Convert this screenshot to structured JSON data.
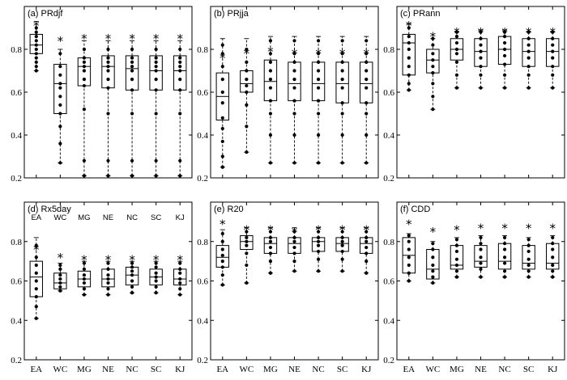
{
  "chart_data": [
    {
      "type": "box",
      "title": "(a) PRdjf",
      "categories": [
        "EA",
        "WC",
        "MG",
        "NE",
        "NC",
        "SC",
        "KJ"
      ],
      "ylim": [
        0.2,
        1.0
      ],
      "yticks": [
        0.2,
        0.4,
        0.6,
        0.8
      ],
      "show_xtick_labels": false,
      "show_ytick_labels": true,
      "boxes": [
        {
          "min": 0.7,
          "q1": 0.78,
          "median": 0.82,
          "q3": 0.87,
          "max": 0.93
        },
        {
          "min": 0.27,
          "q1": 0.5,
          "median": 0.64,
          "q3": 0.73,
          "max": 0.8
        },
        {
          "min": 0.21,
          "q1": 0.63,
          "median": 0.72,
          "q3": 0.76,
          "max": 0.84
        },
        {
          "min": 0.21,
          "q1": 0.62,
          "median": 0.72,
          "q3": 0.77,
          "max": 0.84
        },
        {
          "min": 0.21,
          "q1": 0.61,
          "median": 0.71,
          "q3": 0.77,
          "max": 0.84
        },
        {
          "min": 0.21,
          "q1": 0.61,
          "median": 0.7,
          "q3": 0.77,
          "max": 0.84
        },
        {
          "min": 0.21,
          "q1": 0.61,
          "median": 0.7,
          "q3": 0.77,
          "max": 0.84
        }
      ],
      "mean_markers": [
        0.92,
        0.85,
        0.86,
        0.86,
        0.86,
        0.86,
        0.86
      ],
      "points": [
        [
          0.7,
          0.72,
          0.74,
          0.76,
          0.78,
          0.8,
          0.82,
          0.84,
          0.86,
          0.88,
          0.9
        ],
        [
          0.27,
          0.36,
          0.44,
          0.5,
          0.54,
          0.58,
          0.62,
          0.64,
          0.68,
          0.72,
          0.78
        ],
        [
          0.21,
          0.28,
          0.52,
          0.63,
          0.66,
          0.7,
          0.72,
          0.74,
          0.76,
          0.8
        ],
        [
          0.21,
          0.28,
          0.5,
          0.62,
          0.66,
          0.7,
          0.72,
          0.74,
          0.76,
          0.8
        ],
        [
          0.21,
          0.28,
          0.5,
          0.61,
          0.66,
          0.7,
          0.72,
          0.74,
          0.76,
          0.8
        ],
        [
          0.21,
          0.28,
          0.5,
          0.61,
          0.66,
          0.7,
          0.72,
          0.74,
          0.76,
          0.8
        ],
        [
          0.21,
          0.28,
          0.5,
          0.61,
          0.66,
          0.7,
          0.72,
          0.74,
          0.76,
          0.8
        ]
      ]
    },
    {
      "type": "box",
      "title": "(b) PRjja",
      "categories": [
        "EA",
        "WC",
        "MG",
        "NE",
        "NC",
        "SC",
        "KJ"
      ],
      "ylim": [
        0.2,
        1.0
      ],
      "yticks": [
        0.2,
        0.4,
        0.6,
        0.8
      ],
      "show_xtick_labels": false,
      "show_ytick_labels": true,
      "boxes": [
        {
          "min": 0.25,
          "q1": 0.47,
          "median": 0.58,
          "q3": 0.69,
          "max": 0.85
        },
        {
          "min": 0.32,
          "q1": 0.6,
          "median": 0.64,
          "q3": 0.7,
          "max": 0.85
        },
        {
          "min": 0.27,
          "q1": 0.56,
          "median": 0.65,
          "q3": 0.75,
          "max": 0.86
        },
        {
          "min": 0.27,
          "q1": 0.56,
          "median": 0.64,
          "q3": 0.74,
          "max": 0.86
        },
        {
          "min": 0.27,
          "q1": 0.56,
          "median": 0.64,
          "q3": 0.74,
          "max": 0.86
        },
        {
          "min": 0.27,
          "q1": 0.55,
          "median": 0.64,
          "q3": 0.74,
          "max": 0.86
        },
        {
          "min": 0.27,
          "q1": 0.55,
          "median": 0.64,
          "q3": 0.74,
          "max": 0.86
        }
      ],
      "mean_markers": [
        0.77,
        0.79,
        0.8,
        0.79,
        0.79,
        0.79,
        0.79
      ],
      "points": [
        [
          0.25,
          0.3,
          0.37,
          0.43,
          0.48,
          0.55,
          0.6,
          0.66,
          0.72,
          0.78,
          0.82
        ],
        [
          0.32,
          0.44,
          0.54,
          0.6,
          0.63,
          0.66,
          0.7,
          0.74,
          0.8
        ],
        [
          0.27,
          0.4,
          0.5,
          0.56,
          0.62,
          0.66,
          0.7,
          0.74,
          0.78,
          0.84
        ],
        [
          0.27,
          0.4,
          0.5,
          0.56,
          0.62,
          0.66,
          0.7,
          0.74,
          0.78,
          0.84
        ],
        [
          0.27,
          0.4,
          0.5,
          0.56,
          0.62,
          0.66,
          0.7,
          0.74,
          0.78,
          0.84
        ],
        [
          0.27,
          0.4,
          0.5,
          0.55,
          0.62,
          0.66,
          0.7,
          0.74,
          0.78,
          0.84
        ],
        [
          0.27,
          0.4,
          0.5,
          0.55,
          0.62,
          0.66,
          0.7,
          0.74,
          0.78,
          0.84
        ]
      ]
    },
    {
      "type": "box",
      "title": "(c) PRann",
      "categories": [
        "EA",
        "WC",
        "MG",
        "NE",
        "NC",
        "SC",
        "KJ"
      ],
      "ylim": [
        0.2,
        1.0
      ],
      "yticks": [
        0.2,
        0.4,
        0.6,
        0.8
      ],
      "show_xtick_labels": false,
      "show_ytick_labels": true,
      "boxes": [
        {
          "min": 0.61,
          "q1": 0.68,
          "median": 0.83,
          "q3": 0.87,
          "max": 0.92
        },
        {
          "min": 0.52,
          "q1": 0.69,
          "median": 0.75,
          "q3": 0.8,
          "max": 0.85
        },
        {
          "min": 0.62,
          "q1": 0.75,
          "median": 0.8,
          "q3": 0.85,
          "max": 0.88
        },
        {
          "min": 0.62,
          "q1": 0.72,
          "median": 0.79,
          "q3": 0.85,
          "max": 0.89
        },
        {
          "min": 0.62,
          "q1": 0.73,
          "median": 0.8,
          "q3": 0.86,
          "max": 0.89
        },
        {
          "min": 0.62,
          "q1": 0.72,
          "median": 0.79,
          "q3": 0.85,
          "max": 0.88
        },
        {
          "min": 0.62,
          "q1": 0.72,
          "median": 0.79,
          "q3": 0.85,
          "max": 0.88
        }
      ],
      "mean_markers": [
        0.92,
        0.87,
        0.89,
        0.89,
        0.89,
        0.89,
        0.89
      ],
      "points": [
        [
          0.61,
          0.64,
          0.68,
          0.72,
          0.76,
          0.8,
          0.83,
          0.86,
          0.9
        ],
        [
          0.52,
          0.58,
          0.64,
          0.69,
          0.72,
          0.75,
          0.78,
          0.82,
          0.85
        ],
        [
          0.62,
          0.68,
          0.74,
          0.78,
          0.8,
          0.83,
          0.86,
          0.88
        ],
        [
          0.62,
          0.68,
          0.72,
          0.76,
          0.79,
          0.82,
          0.85,
          0.88
        ],
        [
          0.62,
          0.68,
          0.73,
          0.77,
          0.8,
          0.83,
          0.86,
          0.88
        ],
        [
          0.62,
          0.68,
          0.72,
          0.76,
          0.79,
          0.82,
          0.85,
          0.88
        ],
        [
          0.62,
          0.68,
          0.72,
          0.76,
          0.79,
          0.82,
          0.85,
          0.88
        ]
      ]
    },
    {
      "type": "box",
      "title": "(d) Rx5day",
      "categories": [
        "EA",
        "WC",
        "MG",
        "NE",
        "NC",
        "SC",
        "KJ"
      ],
      "ylim": [
        0.2,
        1.0
      ],
      "yticks": [
        0.2,
        0.4,
        0.6,
        0.8
      ],
      "show_xtick_labels": true,
      "show_ytick_labels": true,
      "header_labels": [
        "EA",
        "WC",
        "MG",
        "NE",
        "NC",
        "SC",
        "KJ"
      ],
      "boxes": [
        {
          "min": 0.41,
          "q1": 0.52,
          "median": 0.62,
          "q3": 0.7,
          "max": 0.82
        },
        {
          "min": 0.55,
          "q1": 0.56,
          "median": 0.59,
          "q3": 0.64,
          "max": 0.69
        },
        {
          "min": 0.53,
          "q1": 0.57,
          "median": 0.61,
          "q3": 0.65,
          "max": 0.7
        },
        {
          "min": 0.53,
          "q1": 0.57,
          "median": 0.61,
          "q3": 0.66,
          "max": 0.7
        },
        {
          "min": 0.54,
          "q1": 0.58,
          "median": 0.63,
          "q3": 0.67,
          "max": 0.7
        },
        {
          "min": 0.54,
          "q1": 0.58,
          "median": 0.62,
          "q3": 0.66,
          "max": 0.7
        },
        {
          "min": 0.53,
          "q1": 0.58,
          "median": 0.61,
          "q3": 0.66,
          "max": 0.7
        }
      ],
      "mean_markers": [
        0.77,
        0.73,
        0.72,
        0.72,
        0.72,
        0.72,
        0.72
      ],
      "points": [
        [
          0.41,
          0.47,
          0.52,
          0.56,
          0.6,
          0.64,
          0.68,
          0.72,
          0.78
        ],
        [
          0.55,
          0.57,
          0.59,
          0.61,
          0.63,
          0.66,
          0.68
        ],
        [
          0.53,
          0.56,
          0.59,
          0.61,
          0.63,
          0.66,
          0.69
        ],
        [
          0.53,
          0.56,
          0.59,
          0.61,
          0.63,
          0.66,
          0.69
        ],
        [
          0.54,
          0.57,
          0.6,
          0.63,
          0.65,
          0.67,
          0.69
        ],
        [
          0.54,
          0.57,
          0.6,
          0.62,
          0.64,
          0.67,
          0.69
        ],
        [
          0.53,
          0.56,
          0.59,
          0.61,
          0.64,
          0.66,
          0.69
        ]
      ]
    },
    {
      "type": "box",
      "title": "(e) R20",
      "categories": [
        "EA",
        "WC",
        "MG",
        "NE",
        "NC",
        "SC",
        "KJ"
      ],
      "ylim": [
        0.2,
        1.0
      ],
      "yticks": [
        0.2,
        0.4,
        0.6,
        0.8
      ],
      "show_xtick_labels": true,
      "show_ytick_labels": true,
      "boxes": [
        {
          "min": 0.58,
          "q1": 0.67,
          "median": 0.72,
          "q3": 0.78,
          "max": 0.86
        },
        {
          "min": 0.59,
          "q1": 0.76,
          "median": 0.8,
          "q3": 0.83,
          "max": 0.87
        },
        {
          "min": 0.64,
          "q1": 0.74,
          "median": 0.79,
          "q3": 0.82,
          "max": 0.87
        },
        {
          "min": 0.65,
          "q1": 0.74,
          "median": 0.79,
          "q3": 0.82,
          "max": 0.87
        },
        {
          "min": 0.65,
          "q1": 0.75,
          "median": 0.8,
          "q3": 0.82,
          "max": 0.87
        },
        {
          "min": 0.65,
          "q1": 0.75,
          "median": 0.79,
          "q3": 0.82,
          "max": 0.87
        },
        {
          "min": 0.64,
          "q1": 0.74,
          "median": 0.79,
          "q3": 0.82,
          "max": 0.87
        }
      ],
      "mean_markers": [
        0.9,
        0.87,
        0.87,
        0.86,
        0.87,
        0.87,
        0.87
      ],
      "points": [
        [
          0.58,
          0.63,
          0.67,
          0.7,
          0.73,
          0.76,
          0.8,
          0.84
        ],
        [
          0.59,
          0.68,
          0.74,
          0.78,
          0.8,
          0.82,
          0.85
        ],
        [
          0.64,
          0.7,
          0.74,
          0.77,
          0.8,
          0.82,
          0.85
        ],
        [
          0.65,
          0.7,
          0.74,
          0.77,
          0.8,
          0.82,
          0.85
        ],
        [
          0.65,
          0.71,
          0.75,
          0.78,
          0.8,
          0.82,
          0.85
        ],
        [
          0.65,
          0.71,
          0.75,
          0.78,
          0.8,
          0.82,
          0.85
        ],
        [
          0.64,
          0.7,
          0.74,
          0.77,
          0.8,
          0.82,
          0.85
        ]
      ]
    },
    {
      "type": "box",
      "title": "(f) CDD",
      "categories": [
        "EA",
        "WC",
        "MG",
        "NE",
        "NC",
        "SC",
        "KJ"
      ],
      "ylim": [
        0.2,
        1.0
      ],
      "yticks": [
        0.2,
        0.4,
        0.6,
        0.8
      ],
      "show_xtick_labels": true,
      "show_ytick_labels": true,
      "boxes": [
        {
          "min": 0.6,
          "q1": 0.64,
          "median": 0.73,
          "q3": 0.82,
          "max": 0.84
        },
        {
          "min": 0.59,
          "q1": 0.61,
          "median": 0.66,
          "q3": 0.76,
          "max": 0.8
        },
        {
          "min": 0.62,
          "q1": 0.66,
          "median": 0.68,
          "q3": 0.78,
          "max": 0.82
        },
        {
          "min": 0.62,
          "q1": 0.67,
          "median": 0.7,
          "q3": 0.78,
          "max": 0.83
        },
        {
          "min": 0.62,
          "q1": 0.66,
          "median": 0.7,
          "q3": 0.79,
          "max": 0.83
        },
        {
          "min": 0.62,
          "q1": 0.66,
          "median": 0.69,
          "q3": 0.78,
          "max": 0.82
        },
        {
          "min": 0.62,
          "q1": 0.66,
          "median": 0.69,
          "q3": 0.79,
          "max": 0.83
        }
      ],
      "mean_markers": [
        0.9,
        0.86,
        0.87,
        0.88,
        0.88,
        0.88,
        0.88
      ],
      "points": [
        [
          0.6,
          0.64,
          0.68,
          0.72,
          0.76,
          0.8,
          0.83
        ],
        [
          0.59,
          0.62,
          0.65,
          0.68,
          0.72,
          0.76,
          0.79
        ],
        [
          0.62,
          0.65,
          0.68,
          0.71,
          0.75,
          0.78,
          0.81
        ],
        [
          0.62,
          0.66,
          0.69,
          0.72,
          0.76,
          0.79,
          0.82
        ],
        [
          0.62,
          0.65,
          0.69,
          0.72,
          0.76,
          0.79,
          0.82
        ],
        [
          0.62,
          0.65,
          0.68,
          0.71,
          0.75,
          0.78,
          0.81
        ],
        [
          0.62,
          0.65,
          0.68,
          0.72,
          0.76,
          0.79,
          0.82
        ]
      ]
    }
  ]
}
